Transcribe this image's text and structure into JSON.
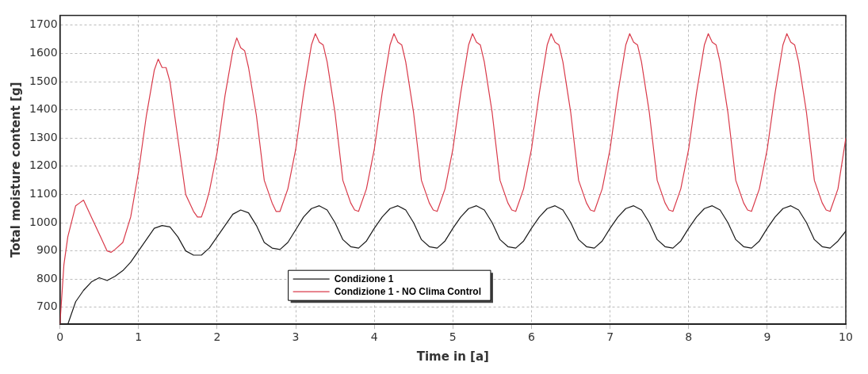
{
  "chart_data": {
    "type": "line",
    "xlabel": "Time in [a]",
    "ylabel": "Total moisture content [g]",
    "xlim": [
      0,
      10
    ],
    "xticks": [
      0,
      1,
      2,
      3,
      4,
      5,
      6,
      7,
      8,
      9,
      10
    ],
    "ylim": [
      640,
      1735
    ],
    "yticks": [
      700,
      800,
      900,
      1000,
      1100,
      1200,
      1300,
      1400,
      1500,
      1600,
      1700
    ],
    "grid": true,
    "legend": "bottom",
    "marker": "none",
    "line_style": "solid",
    "series": [
      {
        "name": "Condizione 1",
        "color": "#1a1a1a",
        "x": [
          0.1,
          0.2,
          0.3,
          0.4,
          0.5,
          0.6,
          0.7,
          0.8,
          0.9,
          1.0,
          1.1,
          1.2,
          1.3,
          1.4,
          1.5,
          1.6,
          1.7,
          1.8,
          1.9,
          2.0,
          2.1,
          2.2,
          2.3,
          2.4,
          2.5,
          2.6,
          2.7,
          2.8,
          2.9,
          3.0,
          3.1,
          3.2,
          3.3,
          3.4,
          3.5,
          3.6,
          3.7,
          3.8,
          3.9,
          4.0,
          4.1,
          4.2,
          4.3,
          4.4,
          4.5,
          4.6,
          4.7,
          4.8,
          4.9,
          5.0,
          5.1,
          5.2,
          5.3,
          5.4,
          5.5,
          5.6,
          5.7,
          5.8,
          5.9,
          6.0,
          6.1,
          6.2,
          6.3,
          6.4,
          6.5,
          6.6,
          6.7,
          6.8,
          6.9,
          7.0,
          7.1,
          7.2,
          7.3,
          7.4,
          7.5,
          7.6,
          7.7,
          7.8,
          7.9,
          8.0,
          8.1,
          8.2,
          8.3,
          8.4,
          8.5,
          8.6,
          8.7,
          8.8,
          8.9,
          9.0,
          9.1,
          9.2,
          9.3,
          9.4,
          9.5,
          9.6,
          9.7,
          9.8,
          9.9,
          10.0
        ],
        "values": [
          640,
          720,
          760,
          790,
          805,
          795,
          810,
          830,
          860,
          900,
          940,
          980,
          990,
          985,
          950,
          900,
          885,
          885,
          910,
          950,
          990,
          1030,
          1045,
          1035,
          990,
          930,
          910,
          905,
          930,
          975,
          1020,
          1050,
          1060,
          1045,
          1000,
          940,
          915,
          910,
          935,
          980,
          1020,
          1050,
          1060,
          1045,
          1000,
          940,
          915,
          910,
          935,
          980,
          1020,
          1050,
          1060,
          1045,
          1000,
          940,
          915,
          910,
          935,
          980,
          1020,
          1050,
          1060,
          1045,
          1000,
          940,
          915,
          910,
          935,
          980,
          1020,
          1050,
          1060,
          1045,
          1000,
          940,
          915,
          910,
          935,
          980,
          1020,
          1050,
          1060,
          1045,
          1000,
          940,
          915,
          910,
          935,
          980,
          1020,
          1050,
          1060,
          1045,
          1000,
          940,
          915,
          910,
          935,
          970
        ]
      },
      {
        "name": "Condizione 1 - NO Clima Control",
        "color": "#d93a4a",
        "x": [
          0,
          0.05,
          0.1,
          0.2,
          0.25,
          0.3,
          0.35,
          0.4,
          0.5,
          0.6,
          0.65,
          0.7,
          0.8,
          0.9,
          1.0,
          1.1,
          1.2,
          1.25,
          1.3,
          1.35,
          1.4,
          1.5,
          1.6,
          1.7,
          1.75,
          1.8,
          1.85,
          1.9,
          2.0,
          2.1,
          2.2,
          2.25,
          2.3,
          2.35,
          2.4,
          2.5,
          2.6,
          2.7,
          2.75,
          2.8,
          2.9,
          3.0,
          3.1,
          3.2,
          3.25,
          3.3,
          3.35,
          3.4,
          3.5,
          3.6,
          3.7,
          3.75,
          3.8,
          3.9,
          4.0,
          4.1,
          4.2,
          4.25,
          4.3,
          4.35,
          4.4,
          4.5,
          4.6,
          4.7,
          4.75,
          4.8,
          4.9,
          5.0,
          5.1,
          5.2,
          5.25,
          5.3,
          5.35,
          5.4,
          5.5,
          5.6,
          5.7,
          5.75,
          5.8,
          5.9,
          6.0,
          6.1,
          6.2,
          6.25,
          6.3,
          6.35,
          6.4,
          6.5,
          6.6,
          6.7,
          6.75,
          6.8,
          6.9,
          7.0,
          7.1,
          7.2,
          7.25,
          7.3,
          7.35,
          7.4,
          7.5,
          7.6,
          7.7,
          7.75,
          7.8,
          7.9,
          8.0,
          8.1,
          8.2,
          8.25,
          8.3,
          8.35,
          8.4,
          8.5,
          8.6,
          8.7,
          8.75,
          8.8,
          8.9,
          9.0,
          9.1,
          9.2,
          9.25,
          9.3,
          9.35,
          9.4,
          9.5,
          9.6,
          9.7,
          9.75,
          9.8,
          9.9,
          10.0
        ],
        "values": [
          640,
          850,
          950,
          1060,
          1070,
          1080,
          1050,
          1020,
          960,
          900,
          895,
          905,
          930,
          1020,
          1180,
          1380,
          1540,
          1580,
          1550,
          1550,
          1500,
          1300,
          1100,
          1040,
          1020,
          1020,
          1060,
          1110,
          1250,
          1450,
          1610,
          1655,
          1620,
          1610,
          1550,
          1380,
          1150,
          1070,
          1040,
          1040,
          1120,
          1260,
          1460,
          1630,
          1670,
          1640,
          1630,
          1570,
          1390,
          1150,
          1070,
          1045,
          1040,
          1120,
          1260,
          1460,
          1630,
          1670,
          1640,
          1630,
          1570,
          1390,
          1150,
          1070,
          1045,
          1040,
          1120,
          1260,
          1460,
          1630,
          1670,
          1640,
          1630,
          1570,
          1390,
          1150,
          1070,
          1045,
          1040,
          1120,
          1260,
          1460,
          1630,
          1670,
          1640,
          1630,
          1570,
          1390,
          1150,
          1070,
          1045,
          1040,
          1120,
          1260,
          1460,
          1630,
          1670,
          1640,
          1630,
          1570,
          1390,
          1150,
          1070,
          1045,
          1040,
          1120,
          1260,
          1460,
          1630,
          1670,
          1640,
          1630,
          1570,
          1390,
          1150,
          1070,
          1045,
          1040,
          1120,
          1260,
          1460,
          1630,
          1670,
          1640,
          1630,
          1570,
          1390,
          1150,
          1070,
          1045,
          1040,
          1120,
          1300
        ]
      }
    ]
  }
}
